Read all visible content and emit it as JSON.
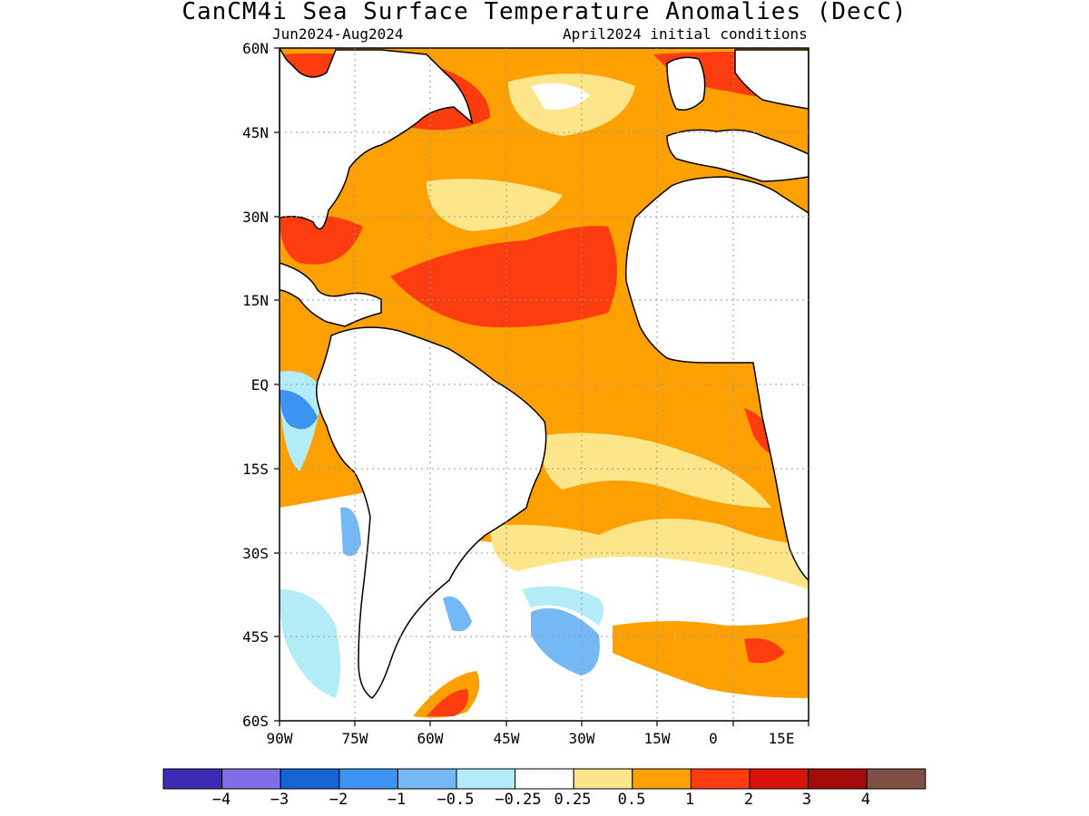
{
  "title": "CanCM4i Sea Surface Temperature Anomalies (DecC)",
  "subtitle_left": "Jun2024-Aug2024",
  "subtitle_right": "April2024 initial conditions",
  "map": {
    "lon_range": [
      -90,
      15
    ],
    "lat_range": [
      -60,
      60
    ],
    "lat_ticks": [
      "60N",
      "45N",
      "30N",
      "15N",
      "EQ",
      "15S",
      "30S",
      "45S",
      "60S"
    ],
    "lon_ticks": [
      "90W",
      "75W",
      "60W",
      "45W",
      "30W",
      "15W",
      "0",
      "15E"
    ],
    "land_color": "#ffffff",
    "coast_color": "#000000"
  },
  "colorbar": {
    "colors": [
      "#3b2cb5",
      "#7f6ee8",
      "#1663d4",
      "#3d93f0",
      "#74b8f6",
      "#b3ecf7",
      "#ffffff",
      "#fde58a",
      "#fea100",
      "#fd3c0f",
      "#db1209",
      "#a30b0b",
      "#7d4f45"
    ],
    "labels": [
      "−4",
      "−3",
      "−2",
      "−1",
      "−0.5",
      "−0.25",
      "0.25",
      "0.5",
      "1",
      "2",
      "3",
      "4"
    ]
  }
}
